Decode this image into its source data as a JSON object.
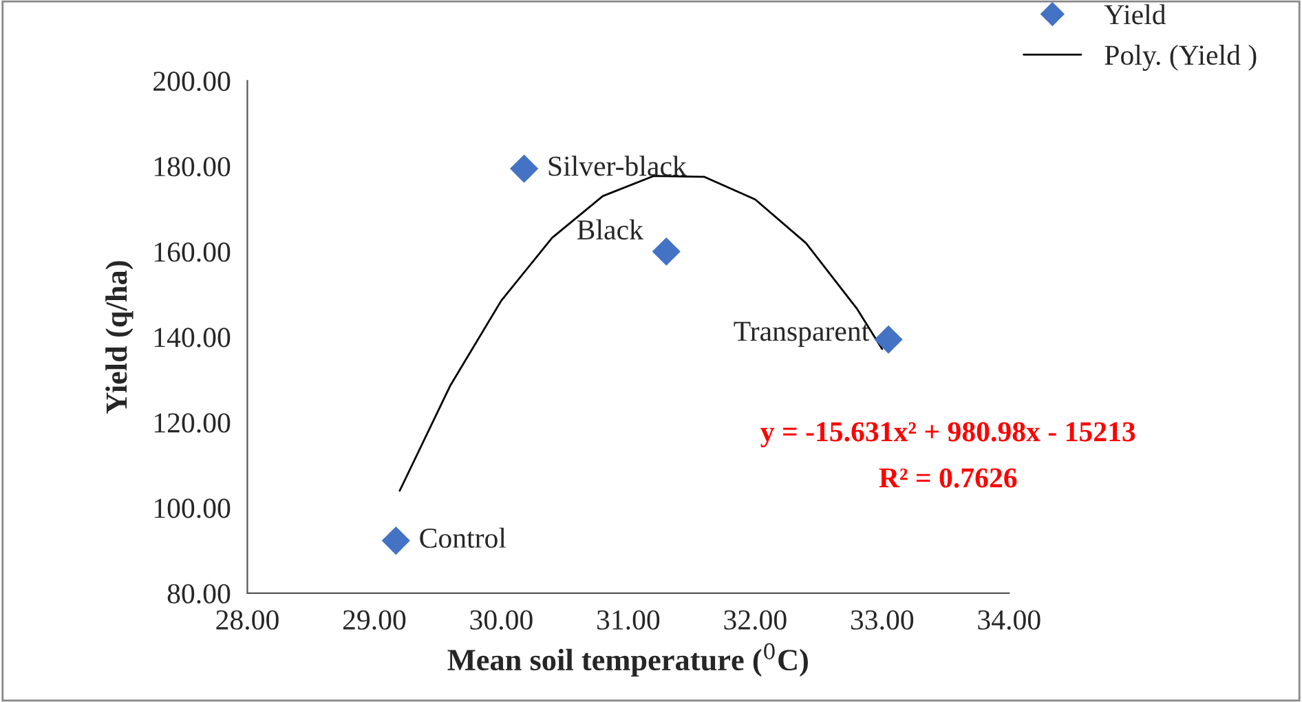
{
  "chart_data": {
    "type": "scatter",
    "xlabel": "Mean soil temperature ($^{0}$C)",
    "ylabel": "Yield (q/ha)",
    "xlim": [
      28,
      34
    ],
    "ylim": [
      80,
      200
    ],
    "xticks": [
      {
        "value": 28,
        "label": "28.00"
      },
      {
        "value": 29,
        "label": "29.00"
      },
      {
        "value": 30,
        "label": "30.00"
      },
      {
        "value": 31,
        "label": "31.00"
      },
      {
        "value": 32,
        "label": "32.00"
      },
      {
        "value": 33,
        "label": "33.00"
      },
      {
        "value": 34,
        "label": "34.00"
      }
    ],
    "yticks": [
      {
        "value": 80,
        "label": "80.00"
      },
      {
        "value": 100,
        "label": "100.00"
      },
      {
        "value": 120,
        "label": "120.00"
      },
      {
        "value": 140,
        "label": "140.00"
      },
      {
        "value": 160,
        "label": "160.00"
      },
      {
        "value": 180,
        "label": "180.00"
      },
      {
        "value": 200,
        "label": "200.00"
      }
    ],
    "grid": false,
    "legend": "top right",
    "marker": "diamond",
    "series": [
      {
        "name": "Yield",
        "color": "#4472c4",
        "x": [
          29.17,
          30.18,
          31.3,
          33.05
        ],
        "values": [
          92.3,
          179.4,
          160,
          139.4
        ]
      },
      {
        "name": "Poly. (Yield )",
        "type": "line",
        "color": "#000000",
        "line_style": "solid",
        "marker": "none",
        "x": [
          29.2,
          29.6,
          30.0,
          30.4,
          30.8,
          31.2,
          31.6,
          32.0,
          32.4,
          32.8,
          33.0
        ],
        "values": [
          104.0,
          128.7,
          148.5,
          163.2,
          173.0,
          177.7,
          177.5,
          172.2,
          162.0,
          146.7,
          137.2
        ]
      }
    ],
    "annotations": [
      {
        "text": "Control",
        "x": 29.17,
        "y": 92.3
      },
      {
        "text": "Silver-black",
        "x": 30.18,
        "y": 179.4
      },
      {
        "text": "Black",
        "x": 31.3,
        "y": 160
      },
      {
        "text": "Transparent",
        "x": 33.05,
        "y": 139.4
      },
      "y = -15.631x² + 980.98x - 15213",
      "R² = 0.7626"
    ]
  }
}
